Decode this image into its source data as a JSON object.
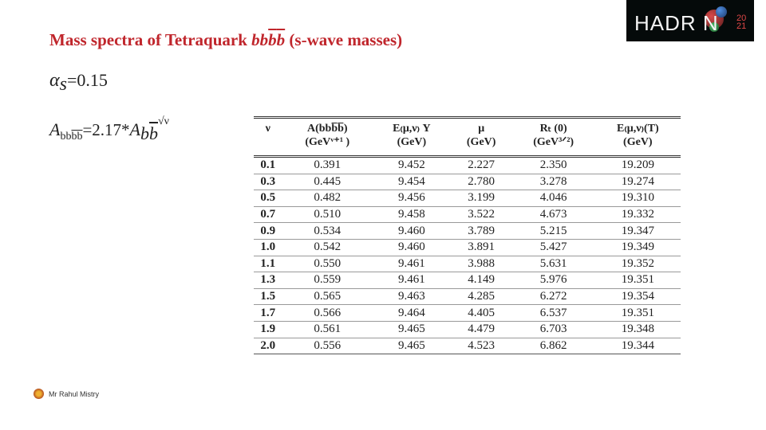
{
  "title": {
    "prefix": "Mass spectra of Tetraquark ",
    "quark_a": "bb",
    "quark_b": "b",
    "quark_c": "b",
    "suffix": " (s-wave masses)"
  },
  "alpha": {
    "symbol": "α",
    "sub": "s",
    "value": "=0.15"
  },
  "formula": {
    "lhs": "A",
    "lhs_sub": "bb",
    "lhs_sub2": "bb",
    "mid": "=2.17*",
    "rhs": "A",
    "rhs_sub": "b",
    "rhs_sub2": "b",
    "exp": "√ν"
  },
  "logo": {
    "text": "HADR N",
    "year_top": "20",
    "year_bottom": "21"
  },
  "table": {
    "headers": [
      {
        "l1": "ν",
        "l2": ""
      },
      {
        "l1": "A(bbb̅b̅)",
        "l2": "(GeVᵛ⁺¹ )"
      },
      {
        "l1": "E₍μ,ν₎ Υ",
        "l2": "(GeV)"
      },
      {
        "l1": "μ",
        "l2": "(GeV)"
      },
      {
        "l1": "Rₜ (0)",
        "l2": "(GeV³ᐟ²)"
      },
      {
        "l1": "E₍μ,ν₎(T)",
        "l2": "(GeV)"
      }
    ],
    "rows": [
      [
        "0.1",
        "0.391",
        "9.452",
        "2.227",
        "2.350",
        "19.209"
      ],
      [
        "0.3",
        "0.445",
        "9.454",
        "2.780",
        "3.278",
        "19.274"
      ],
      [
        "0.5",
        "0.482",
        "9.456",
        "3.199",
        "4.046",
        "19.310"
      ],
      [
        "0.7",
        "0.510",
        "9.458",
        "3.522",
        "4.673",
        "19.332"
      ],
      [
        "0.9",
        "0.534",
        "9.460",
        "3.789",
        "5.215",
        "19.347"
      ],
      [
        "1.0",
        "0.542",
        "9.460",
        "3.891",
        "5.427",
        "19.349"
      ],
      [
        "1.1",
        "0.550",
        "9.461",
        "3.988",
        "5.631",
        "19.352"
      ],
      [
        "1.3",
        "0.559",
        "9.461",
        "4.149",
        "5.976",
        "19.351"
      ],
      [
        "1.5",
        "0.565",
        "9.463",
        "4.285",
        "6.272",
        "19.354"
      ],
      [
        "1.7",
        "0.566",
        "9.464",
        "4.405",
        "6.537",
        "19.351"
      ],
      [
        "1.9",
        "0.561",
        "9.465",
        "4.479",
        "6.703",
        "19.348"
      ],
      [
        "2.0",
        "0.556",
        "9.465",
        "4.523",
        "6.862",
        "19.344"
      ]
    ]
  },
  "footer": {
    "author": "Mr Rahul Mistry"
  }
}
